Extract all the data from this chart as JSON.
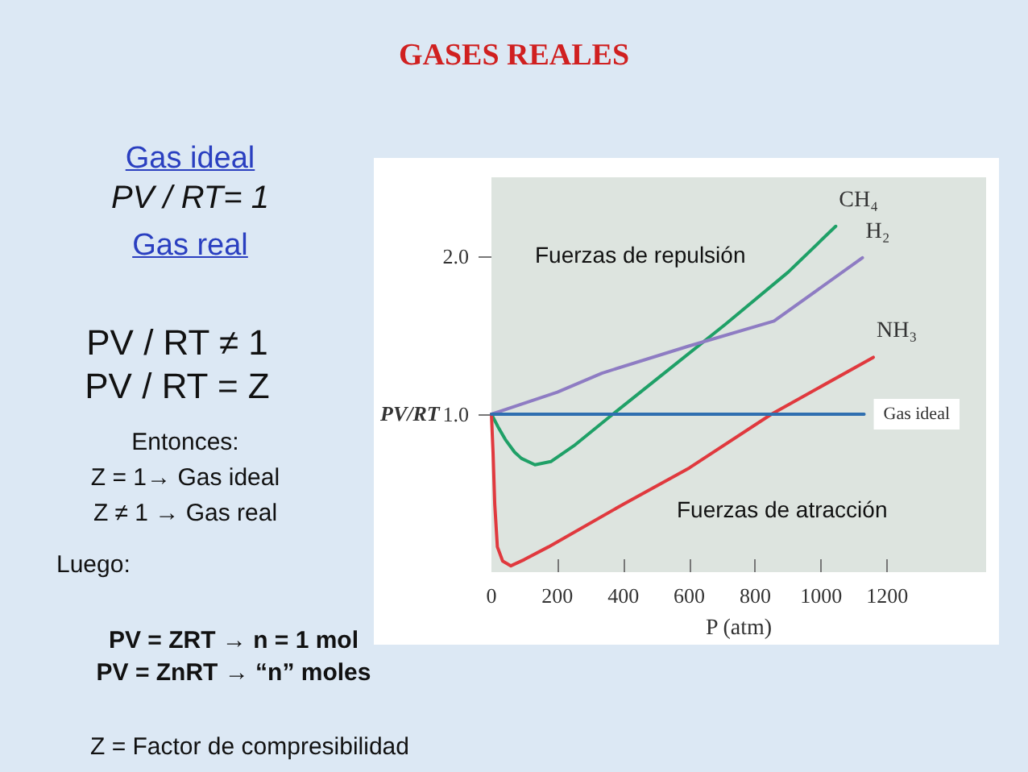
{
  "chart_data": {
    "type": "line",
    "title": "GASES REALES",
    "xlabel": "P (atm)",
    "ylabel": "PV/RT",
    "xlim": [
      0,
      1500
    ],
    "ylim": [
      0,
      2.5
    ],
    "xticks": [
      0,
      200,
      400,
      600,
      800,
      1000,
      1200
    ],
    "yticks": [
      {
        "value": 1,
        "label": "1.0"
      },
      {
        "value": 2,
        "label": "2.0"
      }
    ],
    "grid": false,
    "legend": false,
    "marker": "none",
    "line_style": "solid",
    "series": [
      {
        "name": "CH₄",
        "color": "#1fa067",
        "x": [
          0,
          20,
          42,
          70,
          91,
          132,
          180,
          250,
          368,
          500,
          710,
          900,
          1044
        ],
        "values": [
          1,
          0.92,
          0.84,
          0.76,
          0.72,
          0.68,
          0.7,
          0.8,
          1,
          1.22,
          1.57,
          1.9,
          2.19
        ]
      },
      {
        "name": "H₂",
        "color": "#8e7cc3",
        "x": [
          0,
          200,
          335,
          596,
          857,
          1125
        ],
        "values": [
          1,
          1.14,
          1.26,
          1.43,
          1.59,
          1.99
        ]
      },
      {
        "name": "NH₃",
        "color": "#e0393e",
        "x": [
          0,
          5,
          10,
          18,
          34,
          59,
          100,
          173,
          400,
          600,
          849,
          1158
        ],
        "values": [
          1,
          0.75,
          0.43,
          0.16,
          0.07,
          0.04,
          0.08,
          0.16,
          0.43,
          0.66,
          1,
          1.36
        ]
      },
      {
        "name": "Gas ideal",
        "color": "#2f6fb0",
        "x": [
          0,
          1130
        ],
        "values": [
          1,
          1
        ]
      }
    ],
    "annotations": [
      "Gas ideal",
      "PV / RT= 1",
      "Gas real",
      "PV / RT ≠ 1",
      "PV / RT = Z",
      "Entonces:",
      "Z = 1→ Gas ideal",
      "Z ≠ 1 → Gas real",
      "Luego:",
      "PV = ZRT  →  n = 1 mol",
      "PV = ZnRT  → “n” moles",
      "Z = Factor de compresibilidad",
      "Fuerzas de repulsión",
      "Fuerzas de atracción"
    ]
  }
}
